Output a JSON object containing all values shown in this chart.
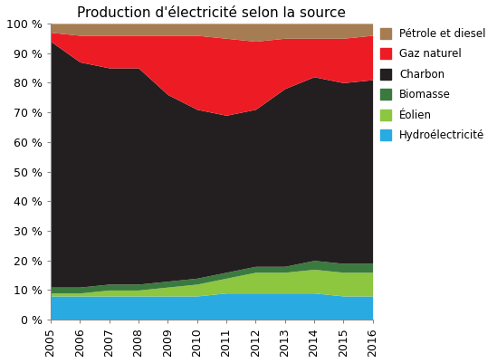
{
  "title": "Production d'électricité selon la source",
  "years": [
    2005,
    2006,
    2007,
    2008,
    2009,
    2010,
    2011,
    2012,
    2013,
    2014,
    2015,
    2016
  ],
  "series": {
    "Hydroélectricité": [
      8,
      8,
      8,
      8,
      8,
      8,
      9,
      9,
      9,
      9,
      8,
      8
    ],
    "Éolien": [
      1,
      1,
      2,
      2,
      3,
      4,
      5,
      7,
      7,
      8,
      8,
      8
    ],
    "Biomasse": [
      2,
      2,
      2,
      2,
      2,
      2,
      2,
      2,
      2,
      3,
      3,
      3
    ],
    "Charbon": [
      83,
      76,
      73,
      73,
      63,
      57,
      53,
      53,
      60,
      62,
      61,
      62
    ],
    "Gaz naturel": [
      3,
      9,
      11,
      11,
      20,
      25,
      26,
      23,
      17,
      13,
      15,
      15
    ],
    "Pétrole et diesel": [
      3,
      4,
      4,
      4,
      4,
      4,
      5,
      6,
      5,
      5,
      5,
      4
    ]
  },
  "colors": {
    "Hydroélectricité": "#29ABE2",
    "Éolien": "#8DC63F",
    "Biomasse": "#3B7A3E",
    "Charbon": "#231F20",
    "Gaz naturel": "#ED1C24",
    "Pétrole et diesel": "#A67C52"
  },
  "ylim": [
    0,
    100
  ],
  "ytick_labels": [
    "0 %",
    "10 %",
    "20 %",
    "30 %",
    "40 %",
    "50 %",
    "60 %",
    "70 %",
    "80 %",
    "90 %",
    "100 %"
  ]
}
